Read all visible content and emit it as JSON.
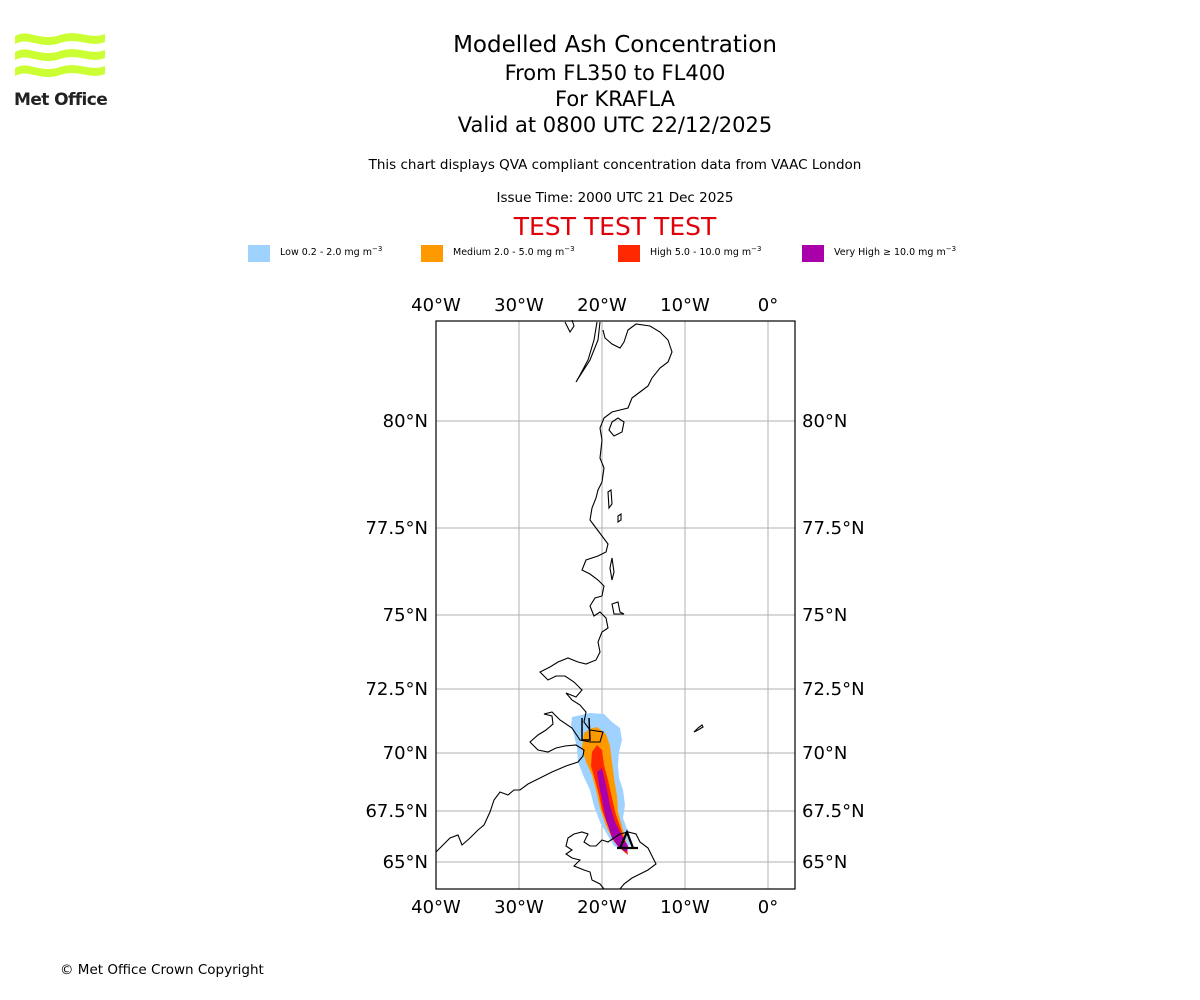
{
  "logo": {
    "name": "Met Office",
    "text": "Met Office",
    "color": "#ccff33"
  },
  "title": {
    "main": "Modelled Ash Concentration",
    "levels": "From FL350 to FL400",
    "volcano": "For KRAFLA",
    "valid": "Valid at 0800 UTC 22/12/2025"
  },
  "subtitle": "This chart displays QVA compliant concentration data from VAAC London",
  "issue_time": "Issue Time: 2000 UTC 21 Dec 2025",
  "test_banner": "TEST TEST TEST",
  "legend": [
    {
      "label": "Low 0.2 - 2.0 mg m",
      "exp": "−3",
      "color": "#a0d2ff"
    },
    {
      "label": "Medium 2.0 - 5.0 mg m",
      "exp": "−3",
      "color": "#ff9900"
    },
    {
      "label": "High 5.0 - 10.0 mg m",
      "exp": "−3",
      "color": "#ff2800"
    },
    {
      "label": "Very High  ≥  10.0 mg m",
      "exp": "−3",
      "color": "#aa00aa"
    }
  ],
  "map": {
    "lon_ticks": [
      "40°W",
      "30°W",
      "20°W",
      "10°W",
      "0°"
    ],
    "lat_ticks": [
      "80°N",
      "77.5°N",
      "75°N",
      "72.5°N",
      "70°N",
      "67.5°N",
      "65°N"
    ],
    "lon_values": [
      -40,
      -30,
      -20,
      -10,
      0
    ],
    "lat_values": [
      80,
      77.5,
      75,
      72.5,
      70,
      67.5,
      65
    ],
    "extent": {
      "lon": [
        -40,
        3
      ],
      "lat": [
        64.3,
        82.3
      ]
    },
    "grid_color": "#b0b0b0",
    "volcano_name": "KRAFLA"
  },
  "copyright": "© Met Office Crown Copyright"
}
